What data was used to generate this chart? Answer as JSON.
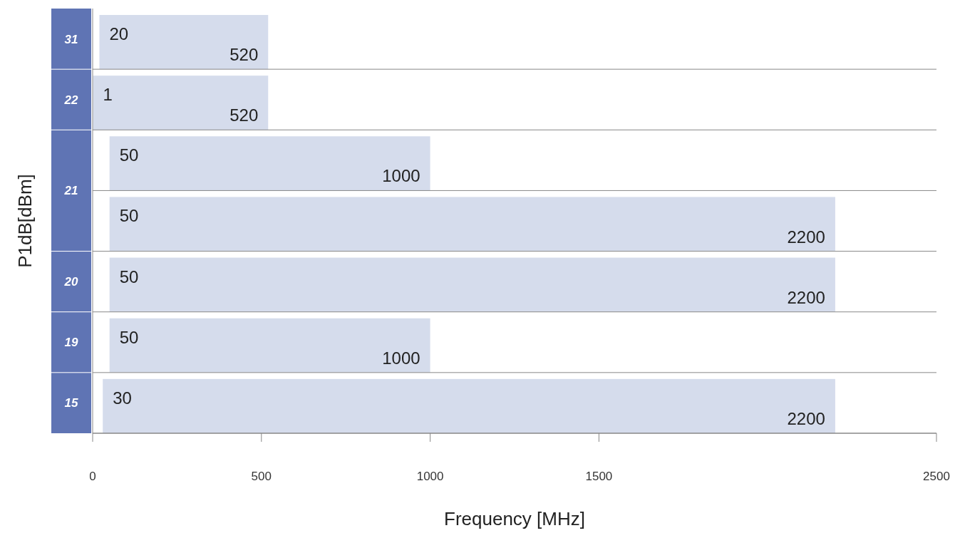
{
  "chart_data": {
    "type": "bar",
    "orientation": "horizontal",
    "xlabel": "Frequency [MHz]",
    "ylabel": "P1dB[dBm]",
    "categories": [
      "31",
      "22",
      "21",
      null,
      "20",
      "19",
      "15"
    ],
    "base": [
      20,
      1,
      50,
      50,
      50,
      50,
      30
    ],
    "values": [
      500,
      519,
      950,
      2150,
      2150,
      950,
      2170
    ],
    "value_labels": [
      "520",
      "520",
      "1000",
      "2200",
      "2200",
      "1000",
      "2200"
    ],
    "color": "#d5dcec",
    "annotations": [
      {
        "text": "20",
        "x": 20,
        "y": "31"
      },
      {
        "text": "1",
        "x": 1,
        "y": "22"
      },
      {
        "text": "50",
        "x": 50,
        "y": "21"
      },
      {
        "text": "50",
        "x": 50
      },
      {
        "text": "50",
        "x": 50,
        "y": "20"
      },
      {
        "text": "50",
        "x": 50,
        "y": "19"
      },
      {
        "text": "30",
        "x": 30,
        "y": "15"
      }
    ],
    "xlim": [
      0,
      2500
    ],
    "xticks": [
      0,
      500,
      1000,
      1500,
      2500
    ],
    "grid": "y"
  }
}
